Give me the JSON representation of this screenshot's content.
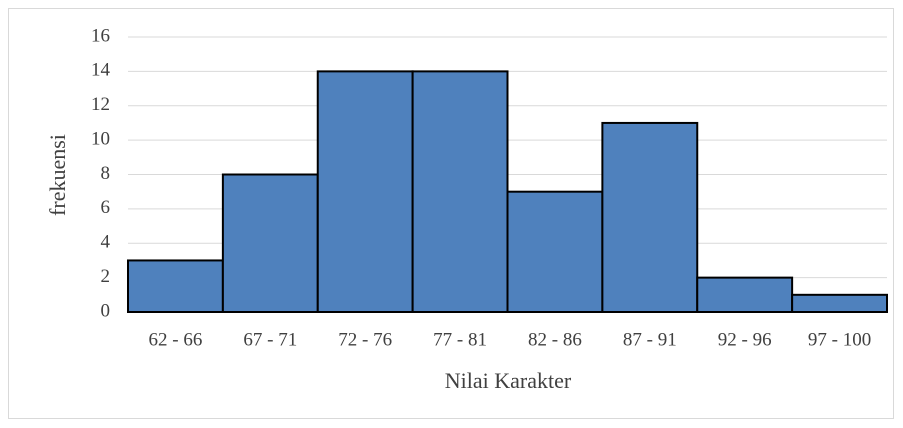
{
  "chart_data": {
    "type": "bar",
    "categories": [
      "62 - 66",
      "67 - 71",
      "72 - 76",
      "77 - 81",
      "82 - 86",
      "87 - 91",
      "92 - 96",
      "97 - 100"
    ],
    "values": [
      3,
      8,
      14,
      14,
      7,
      11,
      2,
      1
    ],
    "color": "#4f81bd",
    "xlabel": "Nilai Karakter",
    "ylabel": "frekuensi",
    "ylim": [
      0,
      16
    ],
    "yticks": [
      0,
      2,
      4,
      6,
      8,
      10,
      12,
      14,
      16
    ],
    "grid": true
  }
}
